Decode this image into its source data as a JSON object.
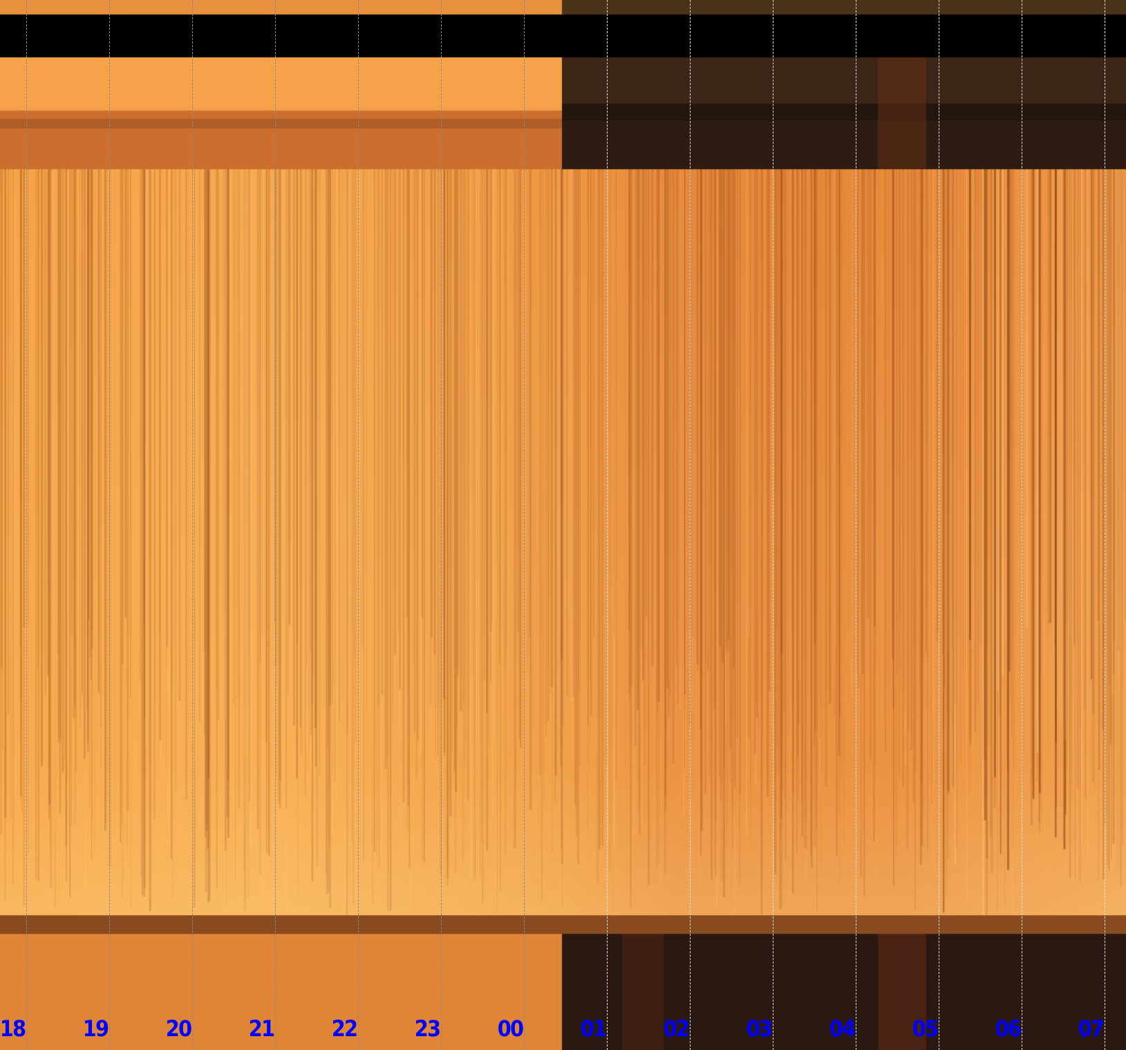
{
  "chart_data": {
    "type": "heatmap",
    "title": "",
    "xlabel": "",
    "ylabel": "",
    "x_tick_labels": [
      "18",
      "19",
      "20",
      "21",
      "22",
      "23",
      "00",
      "01",
      "02",
      "03",
      "04",
      "05",
      "06",
      "07"
    ],
    "grid": "vertical dashed lines at each hour",
    "colors": {
      "tick_label": "#0000ff",
      "bright": "#fcc068",
      "mid": "#e8883a",
      "dark": "#2a1812",
      "mask": "#000000"
    }
  }
}
